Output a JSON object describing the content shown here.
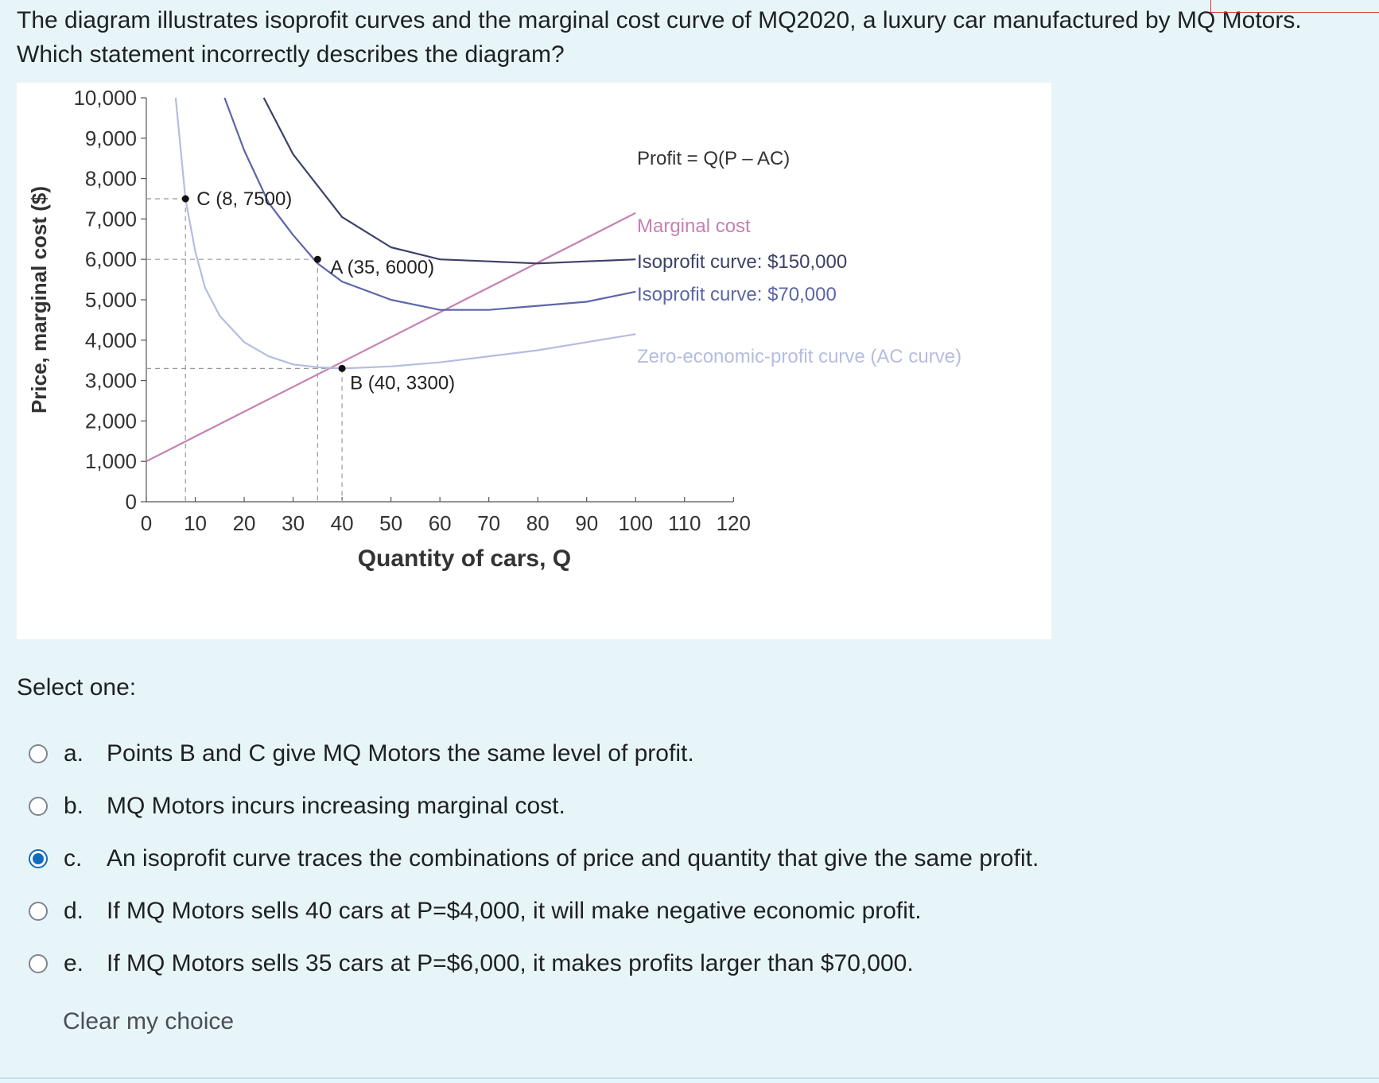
{
  "question": {
    "line1": "The diagram illustrates isoprofit curves and the marginal cost curve of MQ2020, a luxury car manufactured by MQ Motors.",
    "line2": "Which statement incorrectly describes the diagram?"
  },
  "select_one_label": "Select one:",
  "options": [
    {
      "letter": "a.",
      "text": "Points B and C give MQ Motors the same level of profit.",
      "checked": false
    },
    {
      "letter": "b.",
      "text": "MQ Motors incurs increasing marginal cost.",
      "checked": false
    },
    {
      "letter": "c.",
      "text": "An isoprofit curve traces the combinations of price and quantity that give the same profit.",
      "checked": true
    },
    {
      "letter": "d.",
      "text": "If MQ Motors sells 40 cars at P=$4,000, it will make negative economic profit.",
      "checked": false
    },
    {
      "letter": "e.",
      "text": "If MQ Motors sells 35 cars at P=$6,000, it makes profits larger than $70,000.",
      "checked": false
    }
  ],
  "clear_choice_label": "Clear my choice",
  "colors": {
    "marginal_cost": "#c77fb4",
    "isoprofit_150000": "#3b4169",
    "isoprofit_70000": "#5b66a8",
    "zero_profit": "#b4bde0",
    "accent": "#0f6cbf"
  },
  "chart_data": {
    "type": "line",
    "xlabel": "Quantity of cars, Q",
    "ylabel": "Price, marginal cost ($)",
    "xlim": [
      0,
      120
    ],
    "ylim": [
      0,
      10000
    ],
    "x_ticks": [
      "0",
      "10",
      "20",
      "30",
      "40",
      "50",
      "60",
      "70",
      "80",
      "90",
      "100",
      "110",
      "120"
    ],
    "y_ticks": [
      "0",
      "1,000",
      "2,000",
      "3,000",
      "4,000",
      "5,000",
      "6,000",
      "7,000",
      "8,000",
      "9,000",
      "10,000"
    ],
    "formula": "Profit = Q(P – AC)",
    "series": [
      {
        "name": "Marginal cost",
        "x": [
          0,
          100
        ],
        "y": [
          1000,
          7150
        ]
      },
      {
        "name": "Isoprofit curve: $150,000",
        "x": [
          24,
          30,
          40,
          50,
          60,
          70,
          80,
          90,
          100
        ],
        "y": [
          10000,
          8600,
          7050,
          6300,
          6000,
          5950,
          5900,
          5950,
          6000
        ]
      },
      {
        "name": "Isoprofit curve: $70,000",
        "x": [
          16,
          20,
          25,
          30,
          35,
          40,
          50,
          60,
          70,
          80,
          90,
          100
        ],
        "y": [
          10000,
          8700,
          7400,
          6600,
          5900,
          5450,
          5000,
          4750,
          4750,
          4850,
          4950,
          5200
        ]
      },
      {
        "name": "Zero-economic-profit curve (AC curve)",
        "x": [
          6,
          8,
          10,
          12,
          15,
          20,
          25,
          30,
          35,
          40,
          50,
          60,
          70,
          80,
          90,
          100
        ],
        "y": [
          10000,
          7500,
          6200,
          5300,
          4600,
          3950,
          3600,
          3400,
          3330,
          3300,
          3350,
          3450,
          3600,
          3750,
          3950,
          4150
        ]
      }
    ],
    "points": [
      {
        "label": "C (8, 7500)",
        "x": 8,
        "y": 7500
      },
      {
        "label": "A (35, 6000)",
        "x": 35,
        "y": 6000
      },
      {
        "label": "B (40, 3300)",
        "x": 40,
        "y": 3300
      }
    ],
    "grid": false,
    "legend": "right, labels next to curve ends"
  }
}
